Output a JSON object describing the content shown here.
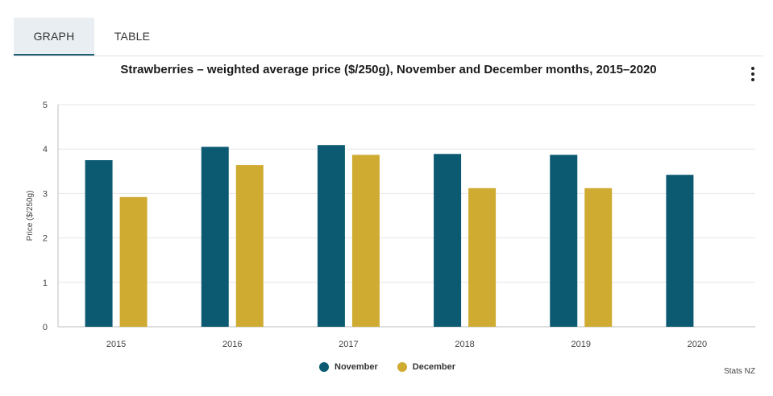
{
  "tabs": {
    "graph": "GRAPH",
    "table": "TABLE"
  },
  "colors": {
    "november": "#0b5a72",
    "december": "#cfab32",
    "grid": "#e6e6e6",
    "axis": "#bcbcbc"
  },
  "source": "Stats NZ",
  "chart_data": {
    "type": "bar",
    "title": "Strawberries – weighted average price ($/250g), November and December months, 2015–2020",
    "xlabel": "",
    "ylabel": "Price ($/250g)",
    "ylim": [
      0,
      5
    ],
    "yticks": [
      "0",
      "1",
      "2",
      "3",
      "4",
      "5"
    ],
    "categories": [
      "2015",
      "2016",
      "2017",
      "2018",
      "2019",
      "2020"
    ],
    "series": [
      {
        "name": "November",
        "values": [
          3.75,
          4.05,
          4.09,
          3.89,
          3.87,
          3.42
        ]
      },
      {
        "name": "December",
        "values": [
          2.92,
          3.64,
          3.87,
          3.12,
          3.12,
          null
        ]
      }
    ],
    "legend_position": "bottom-center",
    "grid": true
  }
}
